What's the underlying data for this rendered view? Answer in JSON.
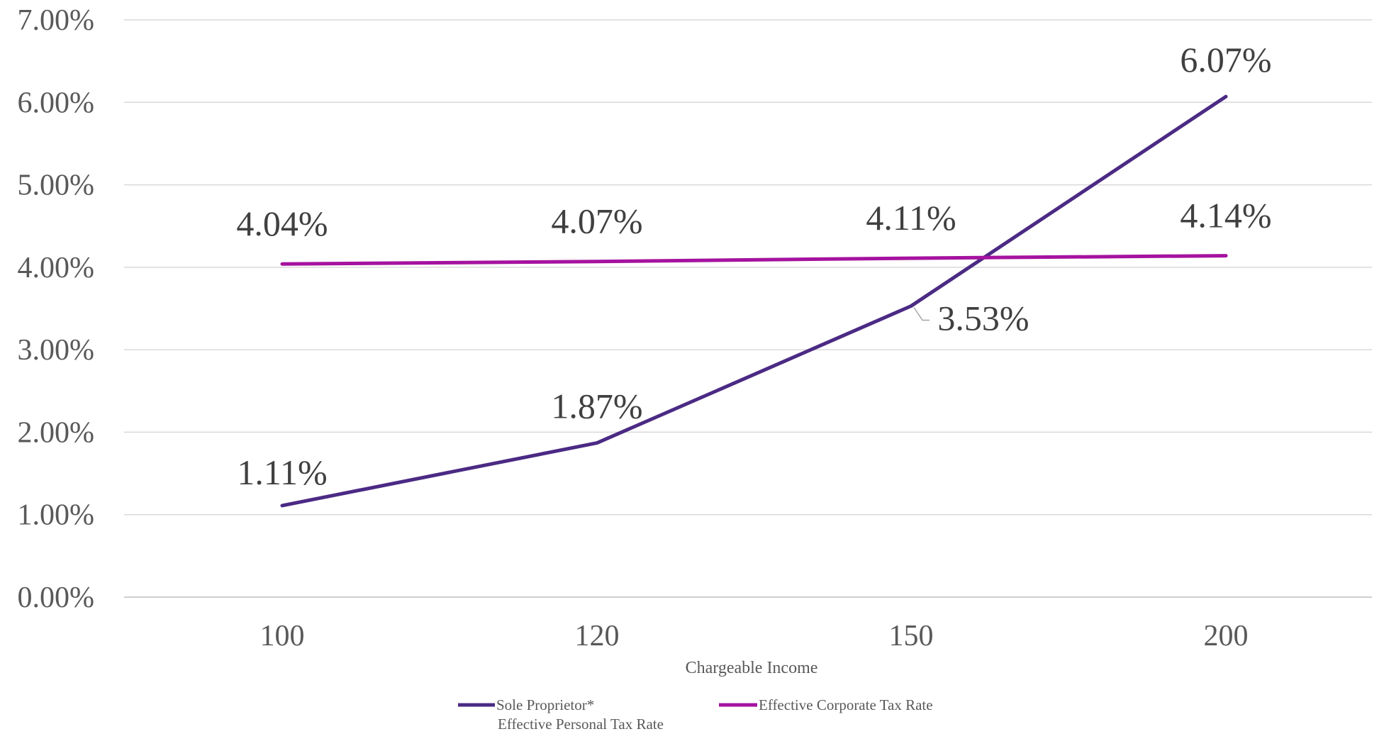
{
  "chart_data": {
    "type": "line",
    "title": "",
    "xlabel": "Chargeable Income",
    "ylabel": "",
    "categories": [
      "100",
      "120",
      "150",
      "200"
    ],
    "ylim": [
      0,
      7
    ],
    "y_ticks": [
      0,
      1,
      2,
      3,
      4,
      5,
      6,
      7
    ],
    "y_tick_labels": [
      "0.00%",
      "1.00%",
      "2.00%",
      "3.00%",
      "4.00%",
      "5.00%",
      "6.00%",
      "7.00%"
    ],
    "grid": true,
    "legend_position": "bottom",
    "series": [
      {
        "name_lines": [
          "Sole Proprietor*",
          "Effective Personal Tax Rate"
        ],
        "color": "#4b2a84",
        "values": [
          1.11,
          1.87,
          3.53,
          6.07
        ],
        "labels": [
          "1.11%",
          "1.87%",
          "3.53%",
          "6.07%"
        ]
      },
      {
        "name": "Effective Corporate Tax Rate",
        "color": "#a5129f",
        "values": [
          4.04,
          4.07,
          4.11,
          4.14
        ],
        "labels": [
          "4.04%",
          "4.07%",
          "4.11%",
          "4.14%"
        ]
      }
    ]
  }
}
